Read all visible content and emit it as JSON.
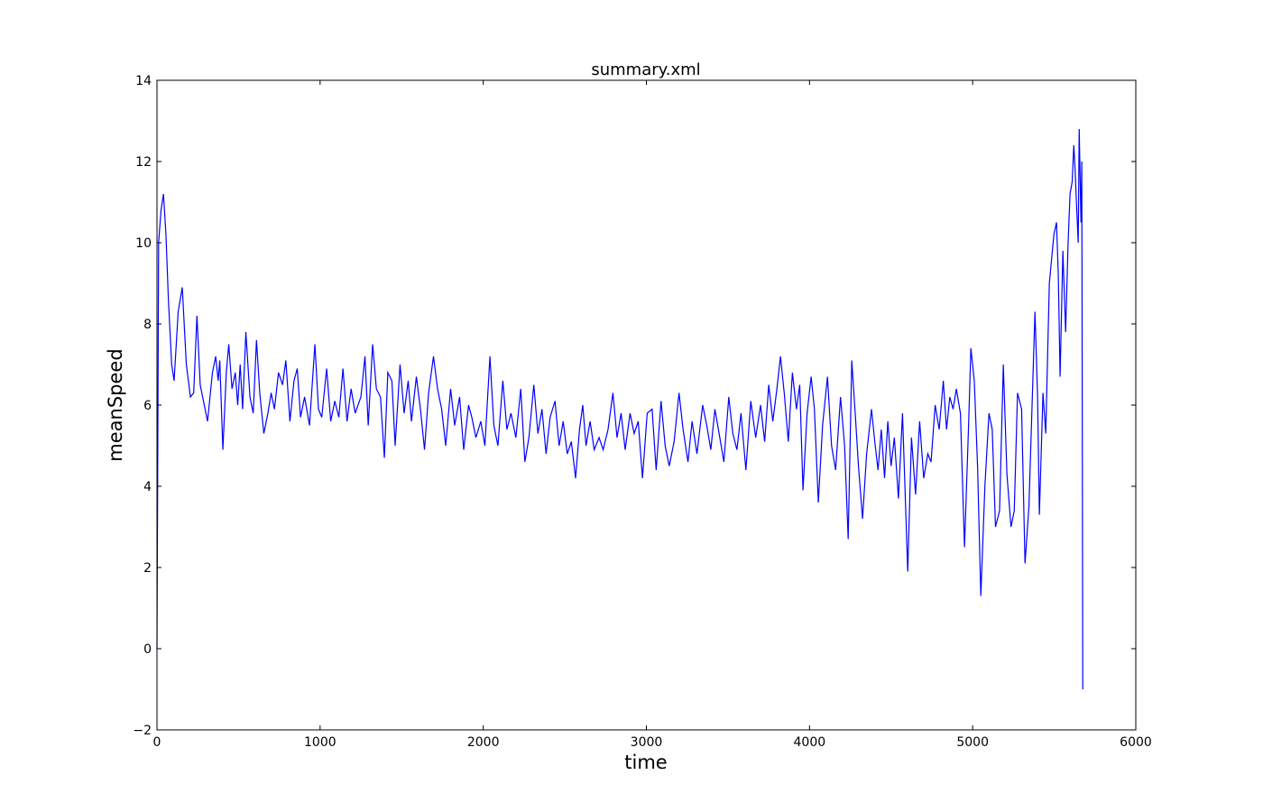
{
  "chart_data": {
    "type": "line",
    "title": "summary.xml",
    "x_label": "time",
    "y_label": "meanSpeed",
    "xlim": [
      0,
      6000
    ],
    "ylim": [
      -2,
      14
    ],
    "xticks": [
      0,
      1000,
      2000,
      3000,
      4000,
      5000,
      6000
    ],
    "yticks": [
      {
        "value": -2,
        "label": "−2"
      },
      0,
      2,
      4,
      6,
      8,
      10,
      12,
      14
    ],
    "grid": false,
    "series": [
      {
        "name": "meanSpeed",
        "color": "#0000ff",
        "x": [
          0,
          10,
          25,
          40,
          55,
          70,
          90,
          105,
          130,
          155,
          180,
          205,
          225,
          245,
          265,
          290,
          310,
          340,
          360,
          375,
          385,
          404,
          425,
          440,
          460,
          480,
          495,
          510,
          525,
          545,
          570,
          590,
          610,
          630,
          655,
          680,
          700,
          720,
          745,
          770,
          790,
          815,
          840,
          860,
          880,
          905,
          935,
          968,
          990,
          1010,
          1040,
          1065,
          1090,
          1115,
          1140,
          1165,
          1190,
          1215,
          1250,
          1275,
          1295,
          1322,
          1345,
          1370,
          1394,
          1415,
          1440,
          1460,
          1490,
          1515,
          1540,
          1560,
          1590,
          1615,
          1640,
          1665,
          1695,
          1720,
          1745,
          1770,
          1800,
          1825,
          1855,
          1880,
          1910,
          1930,
          1955,
          1985,
          2010,
          2041,
          2065,
          2090,
          2120,
          2145,
          2170,
          2200,
          2230,
          2255,
          2280,
          2310,
          2335,
          2360,
          2385,
          2410,
          2440,
          2465,
          2490,
          2515,
          2540,
          2566,
          2590,
          2610,
          2630,
          2655,
          2680,
          2710,
          2735,
          2765,
          2795,
          2820,
          2845,
          2870,
          2900,
          2925,
          2950,
          2976,
          3005,
          3035,
          3060,
          3090,
          3115,
          3140,
          3170,
          3200,
          3225,
          3255,
          3280,
          3310,
          3345,
          3370,
          3395,
          3420,
          3450,
          3475,
          3505,
          3530,
          3555,
          3580,
          3610,
          3640,
          3670,
          3700,
          3725,
          3750,
          3775,
          3800,
          3822,
          3845,
          3870,
          3895,
          3920,
          3940,
          3960,
          3985,
          4010,
          4030,
          4054,
          4080,
          4110,
          4135,
          4160,
          4190,
          4215,
          4237,
          4259,
          4280,
          4300,
          4325,
          4350,
          4380,
          4400,
          4420,
          4440,
          4460,
          4480,
          4500,
          4520,
          4545,
          4570,
          4602,
          4625,
          4650,
          4675,
          4700,
          4725,
          4745,
          4770,
          4795,
          4820,
          4840,
          4860,
          4880,
          4900,
          4925,
          4950,
          4975,
          4989,
          5010,
          5030,
          5050,
          5075,
          5100,
          5120,
          5140,
          5165,
          5188,
          5210,
          5235,
          5255,
          5275,
          5300,
          5321,
          5345,
          5365,
          5382,
          5398,
          5409,
          5420,
          5431,
          5448,
          5470,
          5498,
          5514,
          5525,
          5536,
          5553,
          5570,
          5585,
          5597,
          5610,
          5620,
          5628,
          5636,
          5647,
          5653,
          5664,
          5669,
          5675
        ],
        "values": [
          0,
          10,
          10.8,
          11.2,
          10.2,
          8.6,
          7.0,
          6.6,
          8.3,
          8.9,
          7.0,
          6.2,
          6.3,
          8.2,
          6.5,
          6.0,
          5.6,
          6.8,
          7.2,
          6.6,
          7.1,
          4.9,
          6.8,
          7.5,
          6.4,
          6.8,
          6.0,
          7.0,
          5.9,
          7.8,
          6.2,
          5.8,
          7.6,
          6.3,
          5.3,
          5.8,
          6.3,
          5.9,
          6.8,
          6.5,
          7.1,
          5.6,
          6.6,
          6.9,
          5.7,
          6.2,
          5.5,
          7.5,
          5.9,
          5.7,
          6.9,
          5.6,
          6.1,
          5.7,
          6.9,
          5.6,
          6.4,
          5.8,
          6.2,
          7.2,
          5.5,
          7.5,
          6.4,
          6.2,
          4.7,
          6.8,
          6.6,
          5.0,
          7.0,
          5.8,
          6.6,
          5.6,
          6.7,
          5.9,
          4.9,
          6.3,
          7.2,
          6.4,
          5.9,
          5.0,
          6.4,
          5.5,
          6.2,
          4.9,
          6.0,
          5.7,
          5.2,
          5.6,
          5.0,
          7.2,
          5.5,
          5.0,
          6.6,
          5.4,
          5.8,
          5.2,
          6.4,
          4.6,
          5.2,
          6.5,
          5.3,
          5.9,
          4.8,
          5.7,
          6.1,
          5.0,
          5.6,
          4.8,
          5.1,
          4.2,
          5.4,
          6.0,
          5.0,
          5.6,
          4.9,
          5.2,
          4.9,
          5.4,
          6.3,
          5.2,
          5.8,
          4.9,
          5.8,
          5.3,
          5.6,
          4.2,
          5.8,
          5.9,
          4.4,
          6.1,
          5.0,
          4.5,
          5.1,
          6.3,
          5.4,
          4.6,
          5.6,
          4.8,
          6.0,
          5.5,
          4.9,
          5.9,
          5.2,
          4.6,
          6.2,
          5.3,
          4.9,
          5.8,
          4.4,
          6.1,
          5.2,
          6.0,
          5.1,
          6.5,
          5.6,
          6.4,
          7.2,
          6.3,
          5.1,
          6.8,
          5.9,
          6.5,
          3.9,
          5.8,
          6.7,
          5.9,
          3.6,
          5.5,
          6.7,
          5.0,
          4.4,
          6.2,
          5.0,
          2.7,
          7.1,
          5.8,
          4.5,
          3.2,
          4.8,
          5.9,
          5.1,
          4.4,
          5.4,
          4.2,
          5.6,
          4.5,
          5.2,
          3.7,
          5.8,
          1.9,
          5.2,
          3.8,
          5.6,
          4.2,
          4.8,
          4.6,
          6.0,
          5.4,
          6.6,
          5.4,
          6.2,
          5.9,
          6.4,
          5.8,
          2.5,
          5.5,
          7.4,
          6.6,
          4.5,
          1.3,
          4.0,
          5.8,
          5.4,
          3.0,
          3.4,
          7.0,
          4.3,
          3.0,
          3.4,
          6.3,
          5.9,
          2.1,
          3.5,
          6.1,
          8.3,
          6.2,
          3.3,
          4.8,
          6.3,
          5.3,
          9.0,
          10.2,
          10.5,
          9.2,
          6.7,
          9.8,
          7.8,
          10.0,
          11.2,
          11.5,
          12.4,
          11.8,
          11.0,
          10.0,
          12.8,
          10.5,
          12.0,
          -1
        ]
      }
    ]
  }
}
